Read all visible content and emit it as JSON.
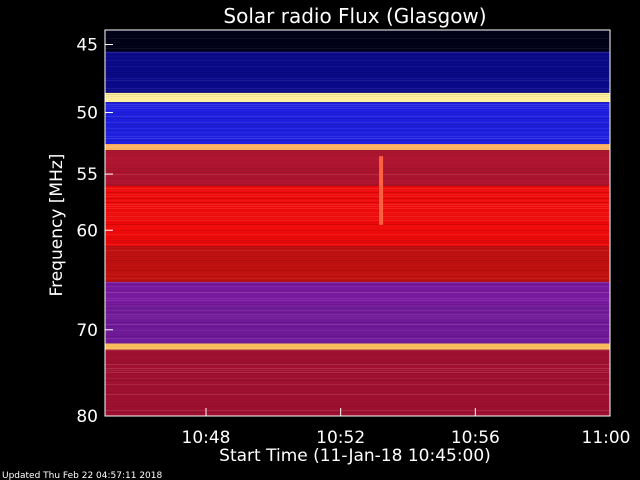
{
  "chart_data": {
    "type": "heatmap",
    "title": "Solar radio Flux (Glasgow)",
    "xlabel": "Start Time (11-Jan-18 10:45:00)",
    "ylabel": "Frequency [MHz]",
    "x_tick_labels": [
      "10:48",
      "10:52",
      "10:56",
      "11:00"
    ],
    "x_tick_minutes": [
      3,
      7,
      11,
      15
    ],
    "x_range_minutes": [
      0,
      15
    ],
    "y_tick_labels": [
      "45",
      "50",
      "55",
      "60",
      "70",
      "80"
    ],
    "y_tick_values": [
      45,
      50,
      55,
      60,
      70,
      80
    ],
    "y_range_mhz": [
      44,
      80
    ],
    "y_scale": "log",
    "frequency_bands": [
      {
        "from_mhz": 44.0,
        "to_mhz": 45.5,
        "color": "#000018"
      },
      {
        "from_mhz": 45.5,
        "to_mhz": 48.5,
        "color": "#0a0a8a"
      },
      {
        "from_mhz": 48.5,
        "to_mhz": 49.2,
        "color": "#fff0a0"
      },
      {
        "from_mhz": 49.2,
        "to_mhz": 52.5,
        "color": "#1f1fe0"
      },
      {
        "from_mhz": 52.5,
        "to_mhz": 53.0,
        "color": "#ffb060"
      },
      {
        "from_mhz": 53.0,
        "to_mhz": 56.0,
        "color": "#b01530"
      },
      {
        "from_mhz": 56.0,
        "to_mhz": 61.5,
        "color": "#ee0a0a"
      },
      {
        "from_mhz": 61.5,
        "to_mhz": 65.0,
        "color": "#c01010"
      },
      {
        "from_mhz": 65.0,
        "to_mhz": 67.5,
        "color": "#7a1aa0"
      },
      {
        "from_mhz": 67.5,
        "to_mhz": 71.5,
        "color": "#701a9a"
      },
      {
        "from_mhz": 71.5,
        "to_mhz": 72.2,
        "color": "#ffc060"
      },
      {
        "from_mhz": 72.2,
        "to_mhz": 80.0,
        "color": "#a01030"
      }
    ],
    "burst_events": [
      {
        "minute": 8.2,
        "from_mhz": 53.5,
        "to_mhz": 59.5
      }
    ],
    "grid": false,
    "legend": "none"
  },
  "footer": {
    "updated": "Updated Thu Feb 22 04:57:11 2018"
  },
  "colors": {
    "background": "#000000",
    "text": "#ffffff",
    "axis": "#ffffff"
  }
}
